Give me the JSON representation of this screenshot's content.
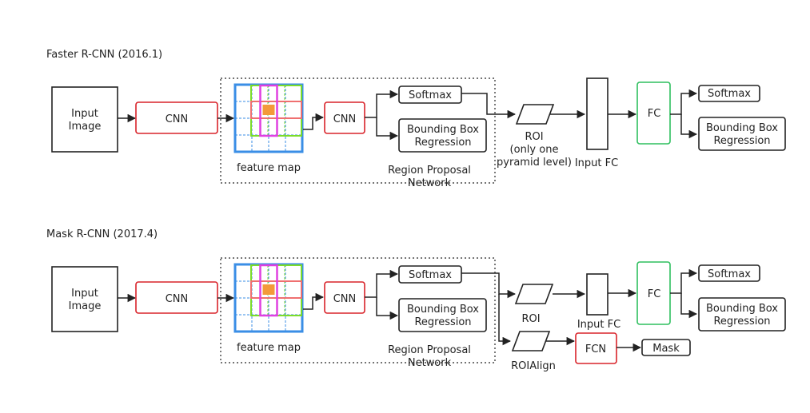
{
  "colors": {
    "box_border": "#222222",
    "cnn_border": "#d9232a",
    "fc_border": "#2fbf5f",
    "grid_blue": "#3a8ee6",
    "grid_green": "#7ddc2a",
    "kernel_magenta": "#e040e0",
    "kernel_salmon": "#ef7070",
    "kernel_center": "#f39a3a"
  },
  "faster": {
    "title": "Faster R-CNN (2016.1)",
    "input_image": [
      "Input",
      "Image"
    ],
    "cnn1": "CNN",
    "feature_map": "feature map",
    "cnn2": "CNN",
    "softmax1": "Softmax",
    "bbox1": [
      "Bounding Box",
      "Regression"
    ],
    "rpn": [
      "Region Proposal",
      "Network"
    ],
    "roi": [
      "ROI",
      "(only one",
      "pyramid level)"
    ],
    "input_fc": "Input FC",
    "fc": "FC",
    "softmax2": "Softmax",
    "bbox2": [
      "Bounding Box",
      "Regression"
    ]
  },
  "mask": {
    "title": "Mask R-CNN (2017.4)",
    "input_image": [
      "Input",
      "Image"
    ],
    "cnn1": "CNN",
    "feature_map": "feature map",
    "cnn2": "CNN",
    "softmax1": "Softmax",
    "bbox1": [
      "Bounding Box",
      "Regression"
    ],
    "rpn": [
      "Region Proposal",
      "Network"
    ],
    "roi": "ROI",
    "roialign": "ROIAlign",
    "input_fc": "Input FC",
    "fc": "FC",
    "fcn": "FCN",
    "mask": "Mask",
    "softmax2": "Softmax",
    "bbox2": [
      "Bounding Box",
      "Regression"
    ]
  }
}
